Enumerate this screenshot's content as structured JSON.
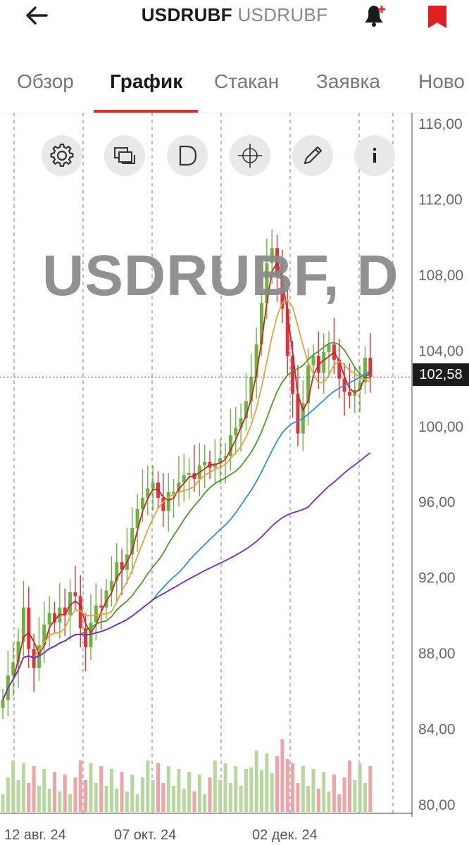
{
  "header": {
    "ticker": "USDRUBF",
    "subtitle": "USDRUBF"
  },
  "tabs": [
    {
      "label": "Обзор",
      "active": false
    },
    {
      "label": "График",
      "active": true
    },
    {
      "label": "Стакан",
      "active": false
    },
    {
      "label": "Заявка",
      "active": false
    },
    {
      "label": "Ново",
      "active": false
    }
  ],
  "toolbar": [
    "settings-icon",
    "layers-icon",
    "d-icon",
    "crosshair-icon",
    "pencil-icon",
    "info-icon"
  ],
  "watermark": "USDRUBF, D",
  "current_price": "102,58",
  "colors": {
    "accent": "#d9322b",
    "candle_up": "#6db33f",
    "candle_down": "#e0323a",
    "ma_red": "#cc2222",
    "ma_orange": "#e8a23a",
    "ma_green": "#4c9a2a",
    "ma_blue": "#2e8ed8",
    "ma_purple": "#7a28c8"
  },
  "chart_data": {
    "type": "candlestick",
    "ylim": [
      80,
      116
    ],
    "y_ticks": [
      "116,00",
      "112,00",
      "108,00",
      "104,00",
      "100,00",
      "96,00",
      "92,00",
      "88,00",
      "84,00",
      "80,00"
    ],
    "x_ticks": [
      "12 авг. 24",
      "07 окт. 24",
      "02 дек. 24"
    ],
    "last_price": 102.58,
    "candles_closes": [
      85.5,
      86.8,
      87.5,
      88.6,
      90.4,
      88.2,
      87.2,
      88.4,
      89.5,
      90.1,
      89.6,
      90.4,
      90.0,
      91.2,
      91.0,
      89.3,
      88.3,
      89.6,
      90.5,
      90.4,
      91.3,
      91.8,
      92.8,
      92.4,
      93.2,
      94.6,
      95.6,
      96.2,
      96.7,
      97.0,
      96.2,
      95.5,
      96.5,
      96.5,
      97.0,
      97.4,
      97.5,
      97.2,
      97.9,
      98.1,
      97.8,
      98.0,
      98.3,
      98.4,
      99.5,
      99.9,
      100.4,
      101.3,
      102.6,
      104.3,
      106.5,
      108.6,
      109.4,
      107.9,
      106.2,
      103.7,
      101.7,
      99.6,
      101.2,
      103.2,
      103.7,
      102.8,
      103.9,
      104.3,
      103.5,
      102.5,
      101.8,
      101.6,
      101.9,
      102.3,
      103.6,
      102.6
    ]
  }
}
